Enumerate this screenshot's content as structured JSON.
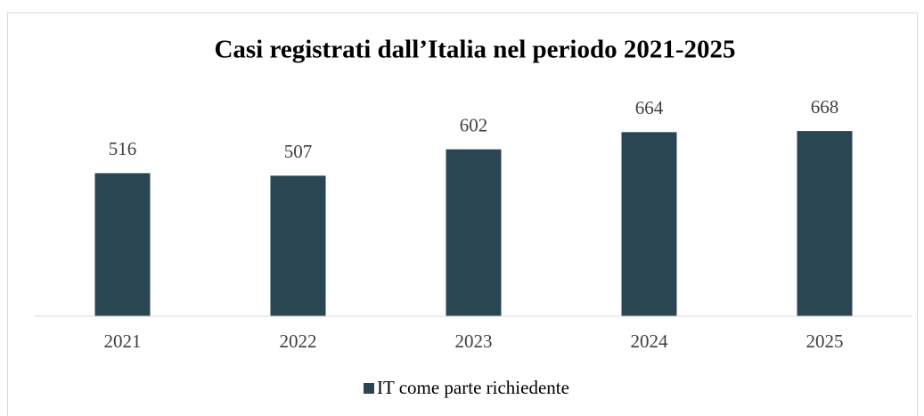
{
  "chart_data": {
    "type": "bar",
    "title": "Casi registrati dall’Italia nel periodo 2021-2025",
    "categories": [
      "2021",
      "2022",
      "2023",
      "2024",
      "2025"
    ],
    "series": [
      {
        "name": "IT come parte richiedente",
        "color": "#2b4653",
        "values": [
          516,
          507,
          602,
          664,
          668
        ]
      }
    ],
    "ylim": [
      0,
      800
    ]
  }
}
